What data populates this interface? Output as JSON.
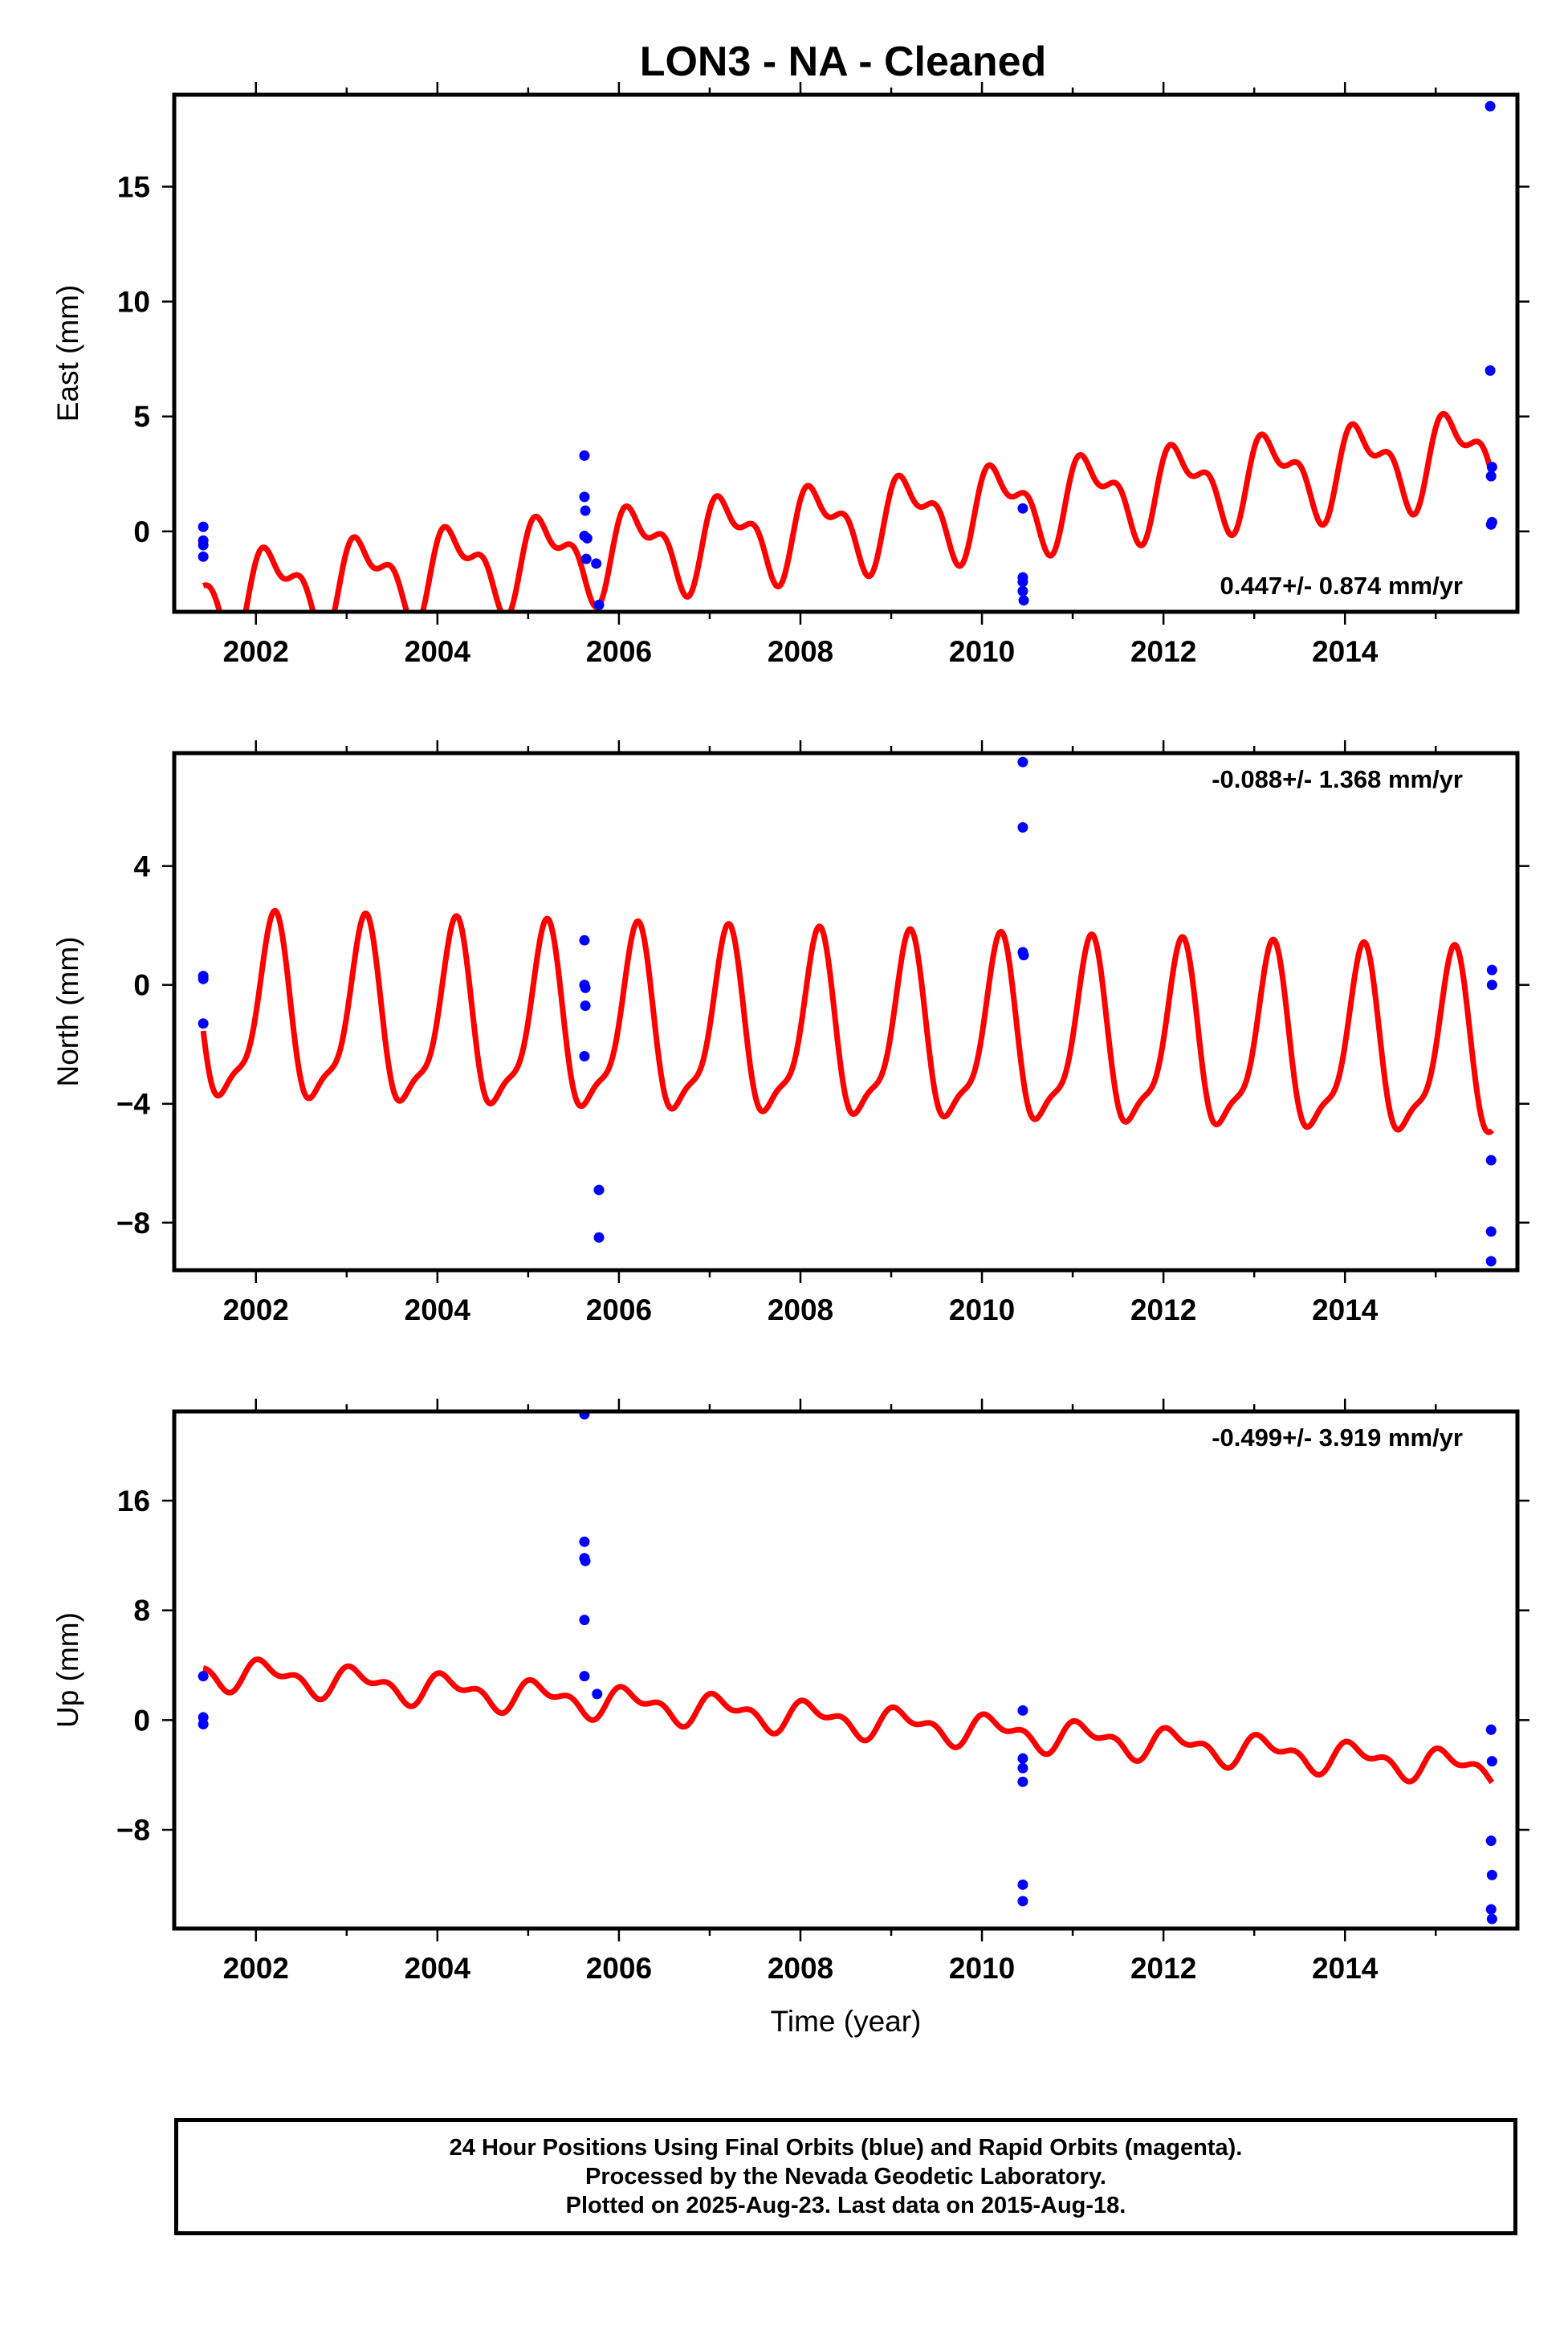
{
  "title": "LON3  - NA - Cleaned",
  "colors": {
    "final_orbits": "#0000ff",
    "model": "#ff0000",
    "frame": "#000000"
  },
  "chart_data": [
    {
      "type": "scatter",
      "panel": "east",
      "ylabel": "East (mm)",
      "xlim": [
        2001.1,
        2015.9
      ],
      "ylim": [
        -3.5,
        19
      ],
      "yticks": [
        0,
        5,
        10,
        15
      ],
      "xticks": [
        2002,
        2004,
        2006,
        2008,
        2010,
        2012,
        2014
      ],
      "rate_annotation": "0.447+/- 0.874 mm/yr",
      "annotation_position": "bottom-right",
      "series": [
        {
          "name": "Final Orbits",
          "color": "#0000ff",
          "points": [
            [
              2001.42,
              0.2
            ],
            [
              2001.42,
              -0.4
            ],
            [
              2001.42,
              -0.6
            ],
            [
              2001.42,
              -1.1
            ],
            [
              2005.62,
              3.3
            ],
            [
              2005.62,
              1.5
            ],
            [
              2005.63,
              0.9
            ],
            [
              2005.62,
              -0.2
            ],
            [
              2005.65,
              -0.3
            ],
            [
              2005.64,
              -1.2
            ],
            [
              2005.75,
              -1.4
            ],
            [
              2005.78,
              -3.2
            ],
            [
              2010.45,
              1.0
            ],
            [
              2010.45,
              -2.0
            ],
            [
              2010.45,
              -2.2
            ],
            [
              2010.45,
              -2.6
            ],
            [
              2010.46,
              -3.0
            ],
            [
              2015.6,
              18.5
            ],
            [
              2015.6,
              7.0
            ],
            [
              2015.62,
              2.8
            ],
            [
              2015.61,
              2.4
            ],
            [
              2015.62,
              0.4
            ],
            [
              2015.61,
              0.3
            ]
          ]
        },
        {
          "name": "Model",
          "color": "#ff0000",
          "model": {
            "t0": 2008.5,
            "offset": 0.3,
            "rate": 0.447,
            "annual_amp": 1.6,
            "annual_phase": 0.3,
            "semi_amp": 0.9,
            "semi_phase": 1.2,
            "t_start": 2001.42,
            "t_end": 2015.62
          }
        }
      ]
    },
    {
      "type": "scatter",
      "panel": "north",
      "ylabel": "North (mm)",
      "xlim": [
        2001.1,
        2015.9
      ],
      "ylim": [
        -9.6,
        7.8
      ],
      "yticks": [
        -8,
        -4,
        0,
        4
      ],
      "xticks": [
        2002,
        2004,
        2006,
        2008,
        2010,
        2012,
        2014
      ],
      "rate_annotation": "-0.088+/- 1.368 mm/yr",
      "annotation_position": "top-right",
      "series": [
        {
          "name": "Final Orbits",
          "color": "#0000ff",
          "points": [
            [
              2001.42,
              0.3
            ],
            [
              2001.42,
              0.2
            ],
            [
              2001.42,
              -1.3
            ],
            [
              2005.62,
              1.5
            ],
            [
              2005.62,
              0.0
            ],
            [
              2005.63,
              -0.1
            ],
            [
              2005.63,
              -0.7
            ],
            [
              2005.62,
              -2.4
            ],
            [
              2005.78,
              -6.9
            ],
            [
              2005.78,
              -8.5
            ],
            [
              2010.45,
              7.5
            ],
            [
              2010.45,
              5.3
            ],
            [
              2010.45,
              1.1
            ],
            [
              2010.46,
              1.0
            ],
            [
              2015.62,
              0.5
            ],
            [
              2015.62,
              0.0
            ],
            [
              2015.61,
              -5.9
            ],
            [
              2015.61,
              -8.3
            ],
            [
              2015.61,
              -9.3
            ]
          ]
        },
        {
          "name": "Model",
          "color": "#ff0000",
          "model": {
            "t0": 2008.5,
            "offset": -1.8,
            "rate": -0.088,
            "annual_amp": 2.9,
            "annual_phase": 0.4,
            "semi_amp": 0.9,
            "semi_phase": -1.3,
            "t_start": 2001.42,
            "t_end": 2015.62
          }
        }
      ]
    },
    {
      "type": "scatter",
      "panel": "up",
      "ylabel": "Up (mm)",
      "xlim": [
        2001.1,
        2015.9
      ],
      "ylim": [
        -15.2,
        22.5
      ],
      "yticks": [
        -8,
        0,
        8,
        16
      ],
      "xticks": [
        2002,
        2004,
        2006,
        2008,
        2010,
        2012,
        2014
      ],
      "xlabel": "Time (year)",
      "rate_annotation": "-0.499+/- 3.919 mm/yr",
      "annotation_position": "top-right",
      "series": [
        {
          "name": "Final Orbits",
          "color": "#0000ff",
          "points": [
            [
              2001.42,
              3.2
            ],
            [
              2001.42,
              0.2
            ],
            [
              2001.42,
              -0.3
            ],
            [
              2005.62,
              22.3
            ],
            [
              2005.62,
              13.0
            ],
            [
              2005.62,
              11.8
            ],
            [
              2005.63,
              11.6
            ],
            [
              2005.62,
              7.3
            ],
            [
              2005.62,
              3.2
            ],
            [
              2005.76,
              1.9
            ],
            [
              2010.45,
              0.7
            ],
            [
              2010.45,
              -2.8
            ],
            [
              2010.45,
              -3.5
            ],
            [
              2010.45,
              -4.5
            ],
            [
              2010.45,
              -12.0
            ],
            [
              2010.45,
              -13.2
            ],
            [
              2015.61,
              -0.7
            ],
            [
              2015.62,
              -3.0
            ],
            [
              2015.61,
              -8.8
            ],
            [
              2015.62,
              -11.3
            ],
            [
              2015.61,
              -13.8
            ],
            [
              2015.62,
              -14.5
            ]
          ]
        },
        {
          "name": "Model",
          "color": "#ff0000",
          "model": {
            "t0": 2008.5,
            "offset": 0.0,
            "rate": -0.499,
            "annual_amp": 0.9,
            "annual_phase": 0.7,
            "semi_amp": 0.6,
            "semi_phase": 1.8,
            "t_start": 2001.42,
            "t_end": 2015.62
          }
        }
      ]
    }
  ],
  "footer": {
    "line1": "24 Hour Positions Using Final Orbits (blue) and Rapid Orbits (magenta).",
    "line2": "Processed by the Nevada Geodetic Laboratory.",
    "line3": "Plotted on 2025-Aug-23. Last data on 2015-Aug-18."
  }
}
